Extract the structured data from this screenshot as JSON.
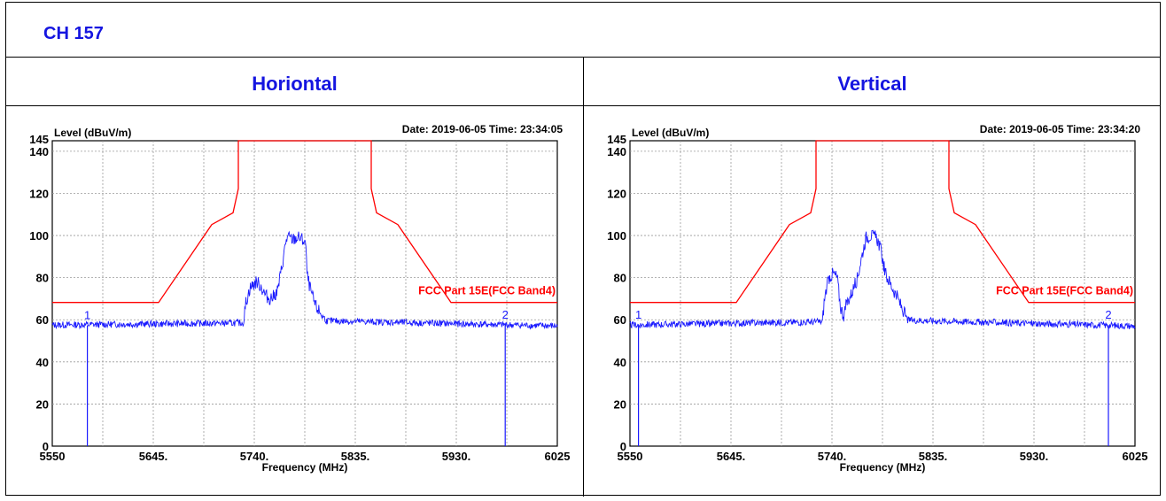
{
  "header": {
    "channel_label": "CH 157"
  },
  "columns": {
    "left_title": "Horiontal",
    "right_title": "Vertical"
  },
  "colors": {
    "title_blue": "#1515e0",
    "trace_blue": "#1a1aff",
    "limit_red": "#ff0000",
    "grid": "#9a9a9a"
  },
  "chart_data": [
    {
      "type": "line",
      "ylabel": "Level (dBuV/m)",
      "xlabel": "Frequency (MHz)",
      "date_time": "Date: 2019-06-05  Time: 23:34:05",
      "xlim": [
        5550,
        6025
      ],
      "ylim": [
        0,
        145
      ],
      "x_ticks": [
        "5550",
        "5645.",
        "5740.",
        "5835.",
        "5930.",
        "6025"
      ],
      "y_ticks": [
        "0",
        "20",
        "40",
        "60",
        "80",
        "100",
        "120",
        "140",
        "145"
      ],
      "grid": true,
      "limit_label": "FCC Part 15E(FCC Band4)",
      "limit_line": {
        "name": "FCC Part 15E(FCC Band4)",
        "x": [
          5550,
          5650,
          5700,
          5720,
          5725,
          5725,
          5850,
          5850,
          5855,
          5875,
          5925,
          6025
        ],
        "y": [
          68.2,
          68.2,
          105.2,
          110.8,
          122.2,
          145,
          145,
          122.2,
          110.8,
          105.2,
          68.2,
          68.2
        ]
      },
      "trace": {
        "name": "Level",
        "x": [
          5550,
          5730,
          5732,
          5736,
          5742,
          5746,
          5750,
          5754,
          5758,
          5762,
          5766,
          5770,
          5772,
          5776,
          5782,
          5788,
          5790,
          5794,
          5798,
          5804,
          5808,
          6025
        ],
        "y": [
          57.5,
          58.5,
          68,
          75,
          78,
          76,
          72,
          70,
          71,
          74,
          85,
          98,
          99,
          98,
          99,
          97,
          80,
          72,
          66,
          62,
          59.5,
          57
        ]
      },
      "markers": [
        {
          "label": "1",
          "x": 5583,
          "y": 57.3
        },
        {
          "label": "2",
          "x": 5976,
          "y": 57.5
        }
      ]
    },
    {
      "type": "line",
      "ylabel": "Level (dBuV/m)",
      "xlabel": "Frequency (MHz)",
      "date_time": "Date: 2019-06-05  Time: 23:34:20",
      "xlim": [
        5550,
        6025
      ],
      "ylim": [
        0,
        145
      ],
      "x_ticks": [
        "5550",
        "5645.",
        "5740.",
        "5835.",
        "5930.",
        "6025"
      ],
      "y_ticks": [
        "0",
        "20",
        "40",
        "60",
        "80",
        "100",
        "120",
        "140",
        "145"
      ],
      "grid": true,
      "limit_label": "FCC Part 15E(FCC Band4)",
      "limit_line": {
        "name": "FCC Part 15E(FCC Band4)",
        "x": [
          5550,
          5650,
          5700,
          5720,
          5725,
          5725,
          5850,
          5850,
          5855,
          5875,
          5925,
          6025
        ],
        "y": [
          68.2,
          68.2,
          105.2,
          110.8,
          122.2,
          145,
          145,
          122.2,
          110.8,
          105.2,
          68.2,
          68.2
        ]
      },
      "trace": {
        "name": "Level",
        "x": [
          5550,
          5731,
          5733,
          5737,
          5741,
          5745,
          5748,
          5751,
          5754,
          5758,
          5764,
          5768,
          5772,
          5776,
          5782,
          5786,
          5790,
          5796,
          5802,
          5808,
          5811,
          6025
        ],
        "y": [
          57.5,
          59,
          70,
          80,
          82,
          80,
          66,
          62,
          68,
          72,
          80,
          90,
          99,
          100,
          99,
          93,
          82,
          76,
          70,
          63,
          59.8,
          57
        ]
      },
      "markers": [
        {
          "label": "1",
          "x": 5558,
          "y": 57.5
        },
        {
          "label": "2",
          "x": 6000,
          "y": 57.5
        }
      ]
    }
  ]
}
